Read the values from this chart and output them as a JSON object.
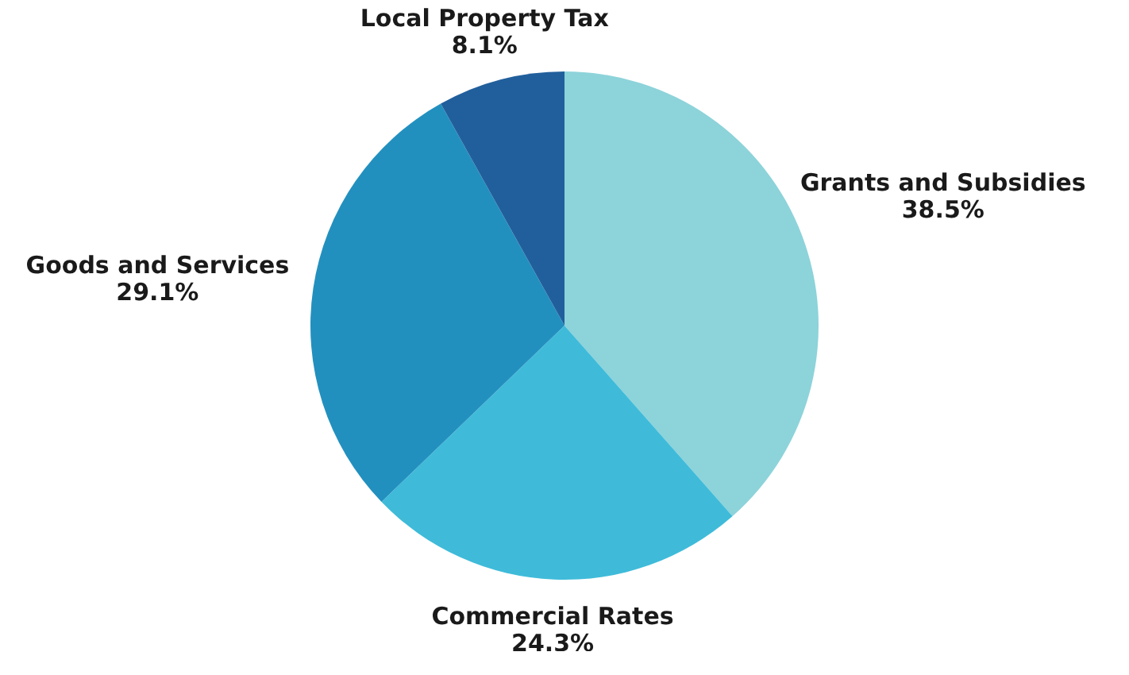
{
  "chart_data": {
    "type": "pie",
    "categories": [
      "Grants and Subsidies",
      "Commercial Rates",
      "Goods and Services",
      "Local Property Tax"
    ],
    "values": [
      38.5,
      24.3,
      29.1,
      8.1
    ],
    "value_labels": [
      "38.5%",
      "24.3%",
      "29.1%",
      "8.1%"
    ],
    "colors": [
      "#8dd3da",
      "#3fbbd9",
      "#2290bf",
      "#215f9c"
    ]
  }
}
